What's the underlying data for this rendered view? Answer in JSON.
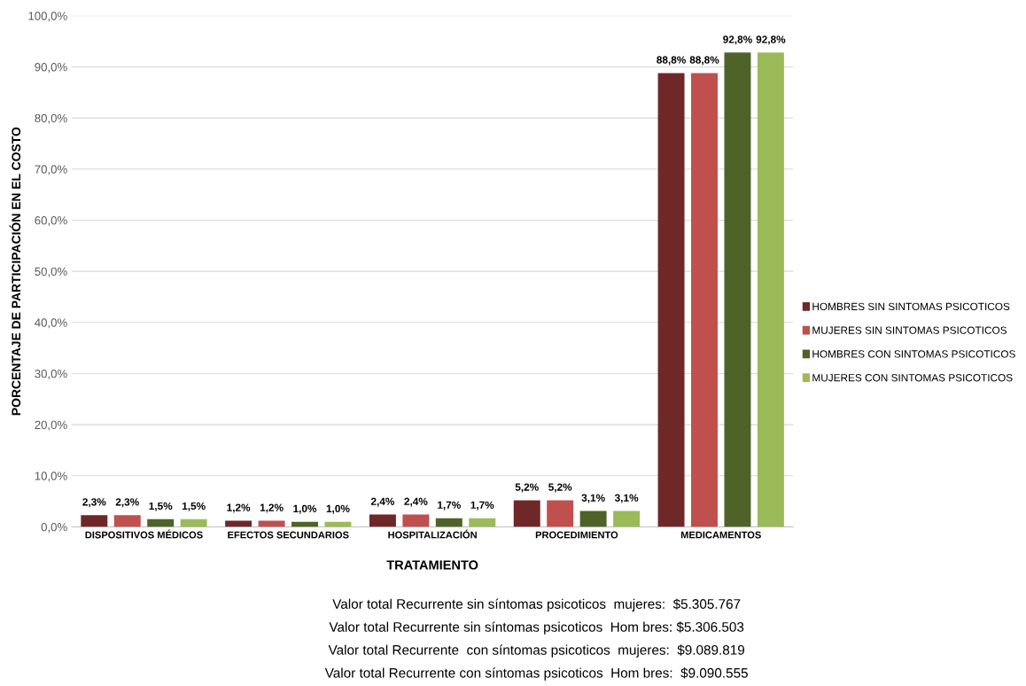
{
  "chart_data": {
    "type": "bar",
    "xlabel": "TRATAMIENTO",
    "ylabel": "PORCENTAJE DE PARTICIPACIÓN EN EL COSTO",
    "categories": [
      "DISPOSITIVOS MÉDICOS",
      "EFECTOS SECUNDARIOS",
      "HOSPITALIZACIÓN",
      "PROCEDIMIENTO",
      "MEDICAMENTOS"
    ],
    "series": [
      {
        "name": "HOMBRES SIN SINTOMAS PSICOTICOS",
        "color": "#6e2828",
        "values": [
          2.3,
          1.2,
          2.4,
          5.2,
          88.8
        ],
        "value_labels": [
          "2,3%",
          "1,2%",
          "2,4%",
          "5,2%",
          "88,8%"
        ]
      },
      {
        "name": "MUJERES SIN SINTOMAS PSICOTICOS",
        "color": "#c0504d",
        "values": [
          2.3,
          1.2,
          2.4,
          5.2,
          88.8
        ],
        "value_labels": [
          "2,3%",
          "1,2%",
          "2,4%",
          "5,2%",
          "88,8%"
        ]
      },
      {
        "name": "HOMBRES CON SINTOMAS PSICOTICOS",
        "color": "#4f6228",
        "values": [
          1.5,
          1.0,
          1.7,
          3.1,
          92.8
        ],
        "value_labels": [
          "1,5%",
          "1,0%",
          "1,7%",
          "3,1%",
          "92,8%"
        ]
      },
      {
        "name": "MUJERES CON SINTOMAS PSICOTICOS",
        "color": "#9bbb59",
        "values": [
          1.5,
          1.0,
          1.7,
          3.1,
          92.8
        ],
        "value_labels": [
          "1,5%",
          "1,0%",
          "1,7%",
          "3,1%",
          "92,8%"
        ]
      }
    ],
    "ylim": [
      0,
      100
    ],
    "yticks": [
      {
        "value": 0,
        "label": "0,0%"
      },
      {
        "value": 10,
        "label": "10,0%"
      },
      {
        "value": 20,
        "label": "20,0%"
      },
      {
        "value": 30,
        "label": "30,0%"
      },
      {
        "value": 40,
        "label": "40,0%"
      },
      {
        "value": 50,
        "label": "50,0%"
      },
      {
        "value": 60,
        "label": "60,0%"
      },
      {
        "value": 70,
        "label": "70,0%"
      },
      {
        "value": 80,
        "label": "80,0%"
      },
      {
        "value": 90,
        "label": "90,0%"
      },
      {
        "value": 100,
        "label": "100,0%"
      }
    ],
    "grid": "y",
    "legend": "right",
    "annotations": [
      "Valor total Recurrente sin síntomas psicoticos  mujeres:  $5.305.767",
      "Valor total Recurrente sin síntomas psicoticos  Hom bres: $5.306.503",
      "Valor total Recurrente  con síntomas psicoticos  mujeres:  $9.089.819",
      "Valor total Recurrente con síntomas psicoticos  Hom bres:  $9.090.555"
    ]
  }
}
